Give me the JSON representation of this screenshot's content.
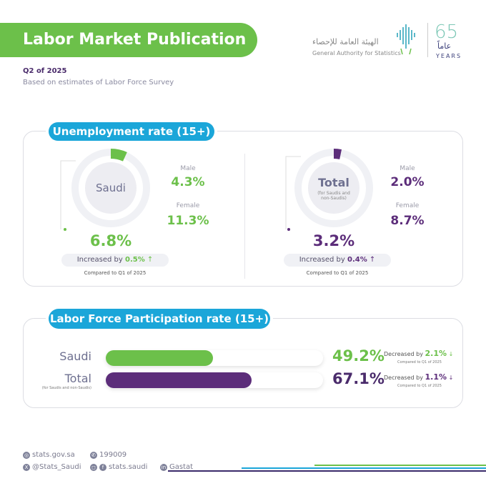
{
  "header": {
    "title": "Labor Market Publication",
    "period": "Q2 of 2025",
    "source_note": "Based on estimates of Labor Force Survey"
  },
  "logo": {
    "arabic": "الهيئة العامة للإحصاء",
    "english": "General Authority for Statistics",
    "anniversary_number": "65",
    "anniversary_arabic": "عاماً",
    "anniversary_years": "YEARS"
  },
  "colors": {
    "saudi": "#6cc04a",
    "total": "#5c2d7a",
    "section": "#1ba6d9"
  },
  "unemployment": {
    "title": "Unemployment rate (15+)",
    "saudi": {
      "label": "Saudi",
      "rate": "6.8%",
      "rate_value": 6.8,
      "male_label": "Male",
      "male": "4.3%",
      "female_label": "Female",
      "female": "11.3%",
      "change_prefix": "Increased by",
      "change": "0.5%",
      "change_dir": "up",
      "compared": "Compared to Q1 of 2025"
    },
    "total": {
      "label": "Total",
      "sublabel": "(for Saudis and non-Saudis)",
      "rate": "3.2%",
      "rate_value": 3.2,
      "male_label": "Male",
      "male": "2.0%",
      "female_label": "Female",
      "female": "8.7%",
      "change_prefix": "Increased by",
      "change": "0.4%",
      "change_dir": "up",
      "compared": "Compared to Q1 of 2025"
    }
  },
  "participation": {
    "title": "Labor Force Participation rate (15+)",
    "rows": [
      {
        "label": "Saudi",
        "sublabel": "",
        "rate": "49.2%",
        "value": 49.2,
        "change_prefix": "Decreased by",
        "change": "2.1%",
        "change_dir": "down",
        "compared": "Compared to Q1 of 2025"
      },
      {
        "label": "Total",
        "sublabel": "(for Saudis and non-Saudis)",
        "rate": "67.1%",
        "value": 67.1,
        "change_prefix": "Decreased by",
        "change": "1.1%",
        "change_dir": "down",
        "compared": "Compared to Q1 of 2025"
      }
    ]
  },
  "footer": {
    "website": "stats.gov.sa",
    "phone": "199009",
    "twitter": "@Stats_Saudi",
    "social": "stats.saudi",
    "linkedin": "Gastat"
  }
}
